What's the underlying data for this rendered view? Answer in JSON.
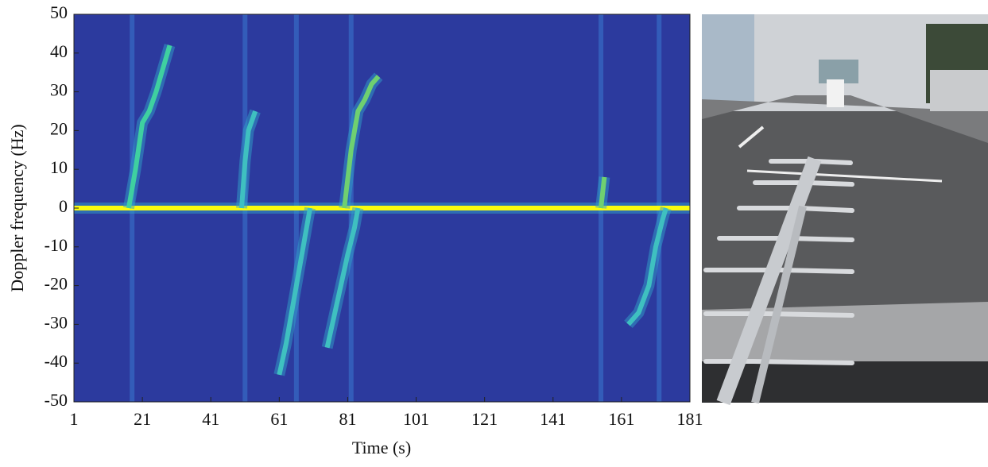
{
  "chart_data": {
    "type": "spectrogram",
    "xlabel": "Time (s)",
    "ylabel": "Doppler frequency (Hz)",
    "xlim": [
      1,
      181
    ],
    "ylim": [
      -50,
      50
    ],
    "xticks": [
      1,
      21,
      41,
      61,
      81,
      101,
      121,
      141,
      161,
      181
    ],
    "yticks": [
      -50,
      -40,
      -30,
      -20,
      -10,
      0,
      10,
      20,
      30,
      40,
      50
    ],
    "background": "#2c3a9e",
    "events": [
      18,
      51,
      66,
      82,
      155,
      172
    ],
    "traces": [
      {
        "color": "#f9fb0e",
        "x": [
          1,
          181
        ],
        "y": [
          0,
          0
        ]
      },
      {
        "color": "#3fd0a0",
        "x": [
          17,
          19,
          21,
          23,
          25,
          27,
          29
        ],
        "y": [
          0,
          10,
          22,
          25,
          30,
          36,
          42
        ]
      },
      {
        "color": "#3fc0c0",
        "x": [
          50,
          51,
          52,
          54
        ],
        "y": [
          0,
          12,
          20,
          25
        ]
      },
      {
        "color": "#3fc0c0",
        "x": [
          61,
          63,
          65,
          67,
          69,
          70
        ],
        "y": [
          -43,
          -35,
          -25,
          -15,
          -5,
          0
        ]
      },
      {
        "color": "#6fd070",
        "x": [
          80,
          82,
          84,
          86,
          88,
          90
        ],
        "y": [
          0,
          15,
          25,
          28,
          32,
          34
        ]
      },
      {
        "color": "#3fc0c0",
        "x": [
          75,
          77,
          79,
          81,
          83,
          84
        ],
        "y": [
          -36,
          -28,
          -20,
          -12,
          -5,
          0
        ]
      },
      {
        "color": "#6fd070",
        "x": [
          155,
          156
        ],
        "y": [
          0,
          8
        ]
      },
      {
        "color": "#3fc0c0",
        "x": [
          163,
          166,
          169,
          171,
          173,
          174
        ],
        "y": [
          -30,
          -27,
          -20,
          -10,
          -3,
          0
        ]
      }
    ]
  }
}
